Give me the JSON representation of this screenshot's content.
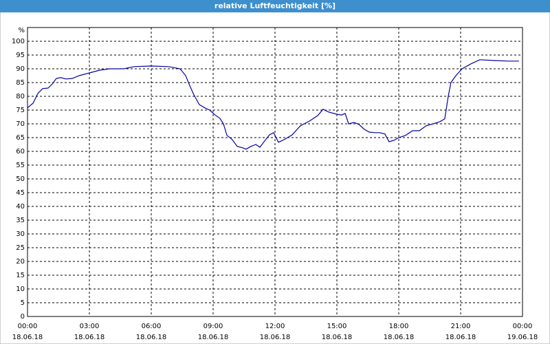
{
  "chart_data": {
    "type": "line",
    "title": "relative Luftfeuchtigkeit [%]",
    "ylabel": "%",
    "x": [
      0,
      0.27,
      0.5,
      0.73,
      1,
      1.2,
      1.4,
      1.6,
      1.87,
      2.17,
      2.5,
      3,
      3.5,
      4,
      4.67,
      5.17,
      6,
      6.83,
      7.4,
      7.67,
      7.87,
      8.07,
      8.33,
      8.6,
      8.83,
      9.1,
      9.33,
      9.5,
      9.67,
      9.9,
      10.17,
      10.43,
      10.6,
      10.83,
      11.07,
      11.27,
      11.5,
      11.73,
      11.93,
      12.17,
      12.5,
      12.83,
      13.23,
      13.67,
      14.07,
      14.33,
      14.6,
      15,
      15.23,
      15.4,
      15.57,
      15.83,
      16.07,
      16.33,
      16.57,
      16.83,
      17.07,
      17.33,
      17.53,
      17.77,
      18,
      18.33,
      18.67,
      19,
      19.33,
      19.67,
      20,
      20.23,
      20.4,
      20.53,
      20.77,
      21.07,
      21.5,
      21.93,
      22.67,
      23.33,
      23.83
    ],
    "series": [
      {
        "name": "relative Luftfeuchtigkeit",
        "color": "#0000a0",
        "values": [
          75.8,
          77.5,
          81,
          82.8,
          83,
          84.5,
          86.5,
          86.8,
          86.3,
          86.5,
          87.5,
          88.5,
          89.5,
          90,
          90,
          90.8,
          91,
          90.8,
          90,
          87.5,
          83.8,
          80.5,
          77,
          75.8,
          75,
          73.2,
          72,
          70,
          65.8,
          64.5,
          61.8,
          61.3,
          60.8,
          61.8,
          62.5,
          61.5,
          63.8,
          66,
          66.8,
          63.3,
          64.5,
          66,
          69.3,
          71,
          73,
          75.3,
          74.3,
          73.5,
          73.2,
          73.8,
          70,
          70.5,
          69.8,
          68,
          67,
          66.8,
          66.8,
          66.3,
          63.5,
          64,
          65,
          65.8,
          67.5,
          67.5,
          69.3,
          70,
          70.8,
          71.8,
          80,
          85,
          87.5,
          90,
          91.8,
          93.3,
          93,
          92.8,
          92.8
        ]
      }
    ],
    "xlim": [
      0,
      24
    ],
    "ylim": [
      0,
      105
    ],
    "xticks": [
      {
        "value": 0,
        "label": "00:00",
        "date": "18.06.18"
      },
      {
        "value": 3,
        "label": "03:00",
        "date": "18.06.18"
      },
      {
        "value": 6,
        "label": "06:00",
        "date": "18.06.18"
      },
      {
        "value": 9,
        "label": "09:00",
        "date": "18.06.18"
      },
      {
        "value": 12,
        "label": "12:00",
        "date": "18.06.18"
      },
      {
        "value": 15,
        "label": "15:00",
        "date": "18.06.18"
      },
      {
        "value": 18,
        "label": "18:00",
        "date": "18.06.18"
      },
      {
        "value": 21,
        "label": "21:00",
        "date": "18.06.18"
      },
      {
        "value": 24,
        "label": "00:00",
        "date": "19.06.18"
      }
    ],
    "yticks": [
      0,
      5,
      10,
      15,
      20,
      25,
      30,
      35,
      40,
      45,
      50,
      55,
      60,
      65,
      70,
      75,
      80,
      85,
      90,
      95,
      100
    ],
    "grid": true
  }
}
